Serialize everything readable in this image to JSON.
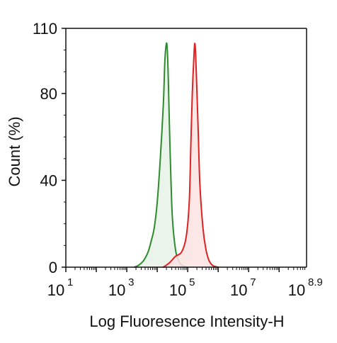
{
  "chart_data": {
    "type": "area",
    "title": "",
    "xlabel": "Log Fluoresence Intensity-H",
    "ylabel": "Count  (%)",
    "x_scale": "log10",
    "xlim": [
      1,
      8.9
    ],
    "ylim": [
      0,
      110
    ],
    "grid": false,
    "legend": "none",
    "x_ticks": [
      {
        "base": "10",
        "exp": "1",
        "value": 1
      },
      {
        "base": "10",
        "exp": "3",
        "value": 3
      },
      {
        "base": "10",
        "exp": "5",
        "value": 5
      },
      {
        "base": "10",
        "exp": "7",
        "value": 7
      },
      {
        "base": "10",
        "exp": "8.9",
        "value": 8.9
      }
    ],
    "y_ticks": [
      {
        "label": "0",
        "value": 0
      },
      {
        "label": "40",
        "value": 40
      },
      {
        "label": "80",
        "value": 80
      },
      {
        "label": "110",
        "value": 110
      }
    ],
    "series": [
      {
        "color": "#2e8b2e",
        "fill": "#e6f2e6",
        "x_log10": [
          3.25,
          3.4,
          3.55,
          3.7,
          3.8,
          3.9,
          4.0,
          4.1,
          4.2,
          4.25,
          4.3,
          4.33,
          4.36,
          4.4,
          4.45,
          4.5,
          4.6,
          4.7,
          4.8,
          4.9,
          5.0
        ],
        "y": [
          0,
          1,
          3,
          7,
          12,
          18,
          30,
          50,
          75,
          95,
          103,
          100,
          88,
          65,
          40,
          22,
          8,
          3,
          1,
          0.3,
          0
        ]
      },
      {
        "color": "#dd2222",
        "fill": "#fbe3e3",
        "x_log10": [
          4.2,
          4.4,
          4.6,
          4.8,
          4.95,
          5.05,
          5.1,
          5.15,
          5.2,
          5.23,
          5.26,
          5.3,
          5.35,
          5.4,
          5.5,
          5.6,
          5.7,
          5.8,
          5.9,
          6.0
        ],
        "y": [
          0,
          2,
          5,
          7,
          14,
          30,
          55,
          80,
          96,
          103,
          98,
          82,
          60,
          38,
          18,
          8,
          3,
          1,
          0.3,
          0
        ]
      }
    ]
  }
}
